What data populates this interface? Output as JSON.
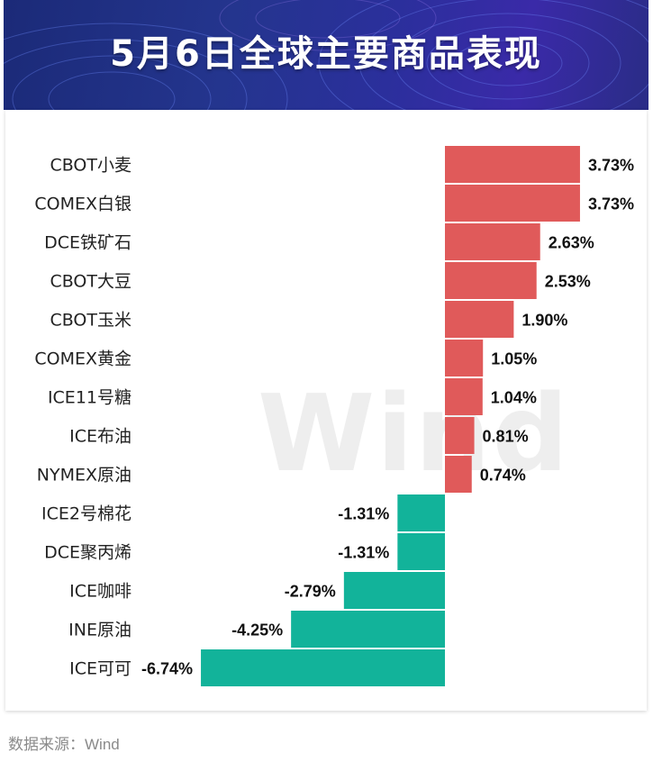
{
  "header": {
    "title": "5月6日全球主要商品表现"
  },
  "watermark": "Wind",
  "source": "数据来源：Wind",
  "colors": {
    "positive": "#e05a5a",
    "negative": "#12b39a",
    "banner": "#24358e"
  },
  "chart_data": {
    "type": "bar",
    "orientation": "horizontal",
    "title": "5月6日全球主要商品表现",
    "unit": "%",
    "categories": [
      "CBOT小麦",
      "COMEX白银",
      "DCE铁矿石",
      "CBOT大豆",
      "CBOT玉米",
      "COMEX黄金",
      "ICE11号糖",
      "ICE布油",
      "NYMEX原油",
      "ICE2号棉花",
      "DCE聚丙烯",
      "ICE咖啡",
      "INE原油",
      "ICE可可"
    ],
    "values": [
      3.73,
      3.73,
      2.63,
      2.53,
      1.9,
      1.05,
      1.04,
      0.81,
      0.74,
      -1.31,
      -1.31,
      -2.79,
      -4.25,
      -6.74
    ],
    "value_labels": [
      "3.73%",
      "3.73%",
      "2.63%",
      "2.53%",
      "1.90%",
      "1.05%",
      "1.04%",
      "0.81%",
      "0.74%",
      "-1.31%",
      "-1.31%",
      "-2.79%",
      "-4.25%",
      "-6.74%"
    ],
    "xlim": [
      -6.74,
      3.73
    ],
    "grid": false,
    "legend": "none"
  }
}
